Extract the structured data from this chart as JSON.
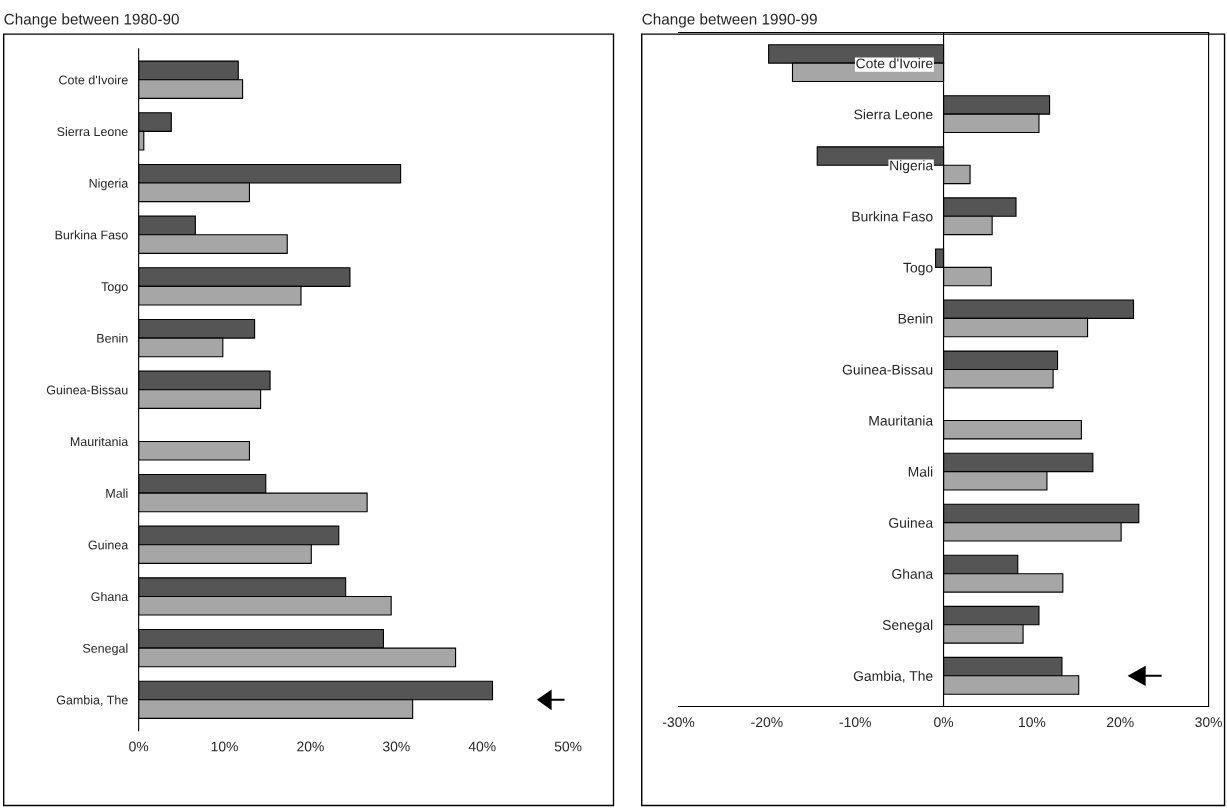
{
  "chart_data": [
    {
      "type": "bar",
      "orientation": "horizontal",
      "title": "Change between 1980-90",
      "categories": [
        "Cote d'Ivoire",
        "Sierra Leone",
        "Nigeria",
        "Burkina Faso",
        "Togo",
        "Benin",
        "Guinea-Bissau",
        "Mauritania",
        "Mali",
        "Guinea",
        "Ghana",
        "Senegal",
        "Gambia, The"
      ],
      "series": [
        {
          "color": "#555555",
          "values": [
            11.6,
            3.8,
            30.5,
            6.6,
            24.6,
            13.5,
            15.3,
            null,
            14.8,
            23.3,
            24.1,
            28.5,
            41.2
          ]
        },
        {
          "color": "#a6a6a6",
          "values": [
            12.1,
            0.6,
            12.9,
            17.3,
            18.9,
            9.8,
            14.2,
            12.9,
            26.6,
            20.1,
            29.4,
            36.9,
            31.9
          ]
        }
      ],
      "xlim": [
        0,
        50
      ],
      "xticks": [
        {
          "value": 0,
          "label": "0%"
        },
        {
          "value": 10,
          "label": "10%"
        },
        {
          "value": 20,
          "label": "20%"
        },
        {
          "value": 30,
          "label": "30%"
        },
        {
          "value": 40,
          "label": "40%"
        },
        {
          "value": 50,
          "label": "50%"
        }
      ],
      "grid": false,
      "legend": false
    },
    {
      "type": "bar",
      "orientation": "horizontal",
      "title": "Change between 1990-99",
      "categories": [
        "Cote d'Ivoire",
        "Sierra Leone",
        "Nigeria",
        "Burkina Faso",
        "Togo",
        "Benin",
        "Guinea-Bissau",
        "Mauritania",
        "Mali",
        "Guinea",
        "Ghana",
        "Senegal",
        "Gambia, The"
      ],
      "series": [
        {
          "color": "#555555",
          "values": [
            -19.8,
            12.0,
            -14.3,
            8.2,
            -0.9,
            21.5,
            12.9,
            null,
            16.9,
            22.1,
            8.4,
            10.8,
            13.4
          ]
        },
        {
          "color": "#a6a6a6",
          "values": [
            -17.1,
            10.8,
            3.0,
            5.5,
            5.4,
            16.3,
            12.4,
            15.6,
            11.7,
            20.1,
            13.5,
            9.0,
            15.3
          ]
        }
      ],
      "xlim": [
        -30,
        30
      ],
      "xticks": [
        {
          "value": -30,
          "label": "-30%"
        },
        {
          "value": -20,
          "label": "-20%"
        },
        {
          "value": -10,
          "label": "-10%"
        },
        {
          "value": 0,
          "label": "0%"
        },
        {
          "value": 10,
          "label": "10%"
        },
        {
          "value": 20,
          "label": "20%"
        },
        {
          "value": 30,
          "label": "30%"
        }
      ],
      "grid": false,
      "legend": false
    }
  ]
}
